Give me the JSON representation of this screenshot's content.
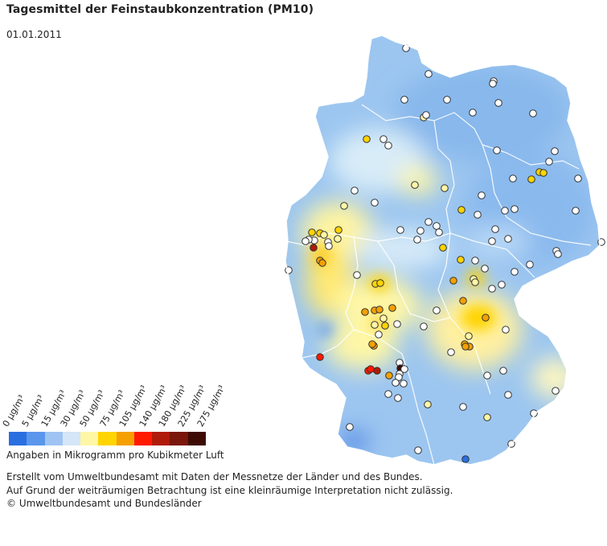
{
  "header": {
    "title": "Tagesmittel der Feinstaubkonzentration (PM10)",
    "date": "01.01.2011"
  },
  "legend": {
    "labels": [
      "0 µg/m³",
      "5 µg/m³",
      "15 µg/m³",
      "30 µg/m³",
      "50 µg/m³",
      "75 µg/m³",
      "105 µg/m³",
      "140 µg/m³",
      "180 µg/m³",
      "225 µg/m³",
      "275 µg/m³"
    ],
    "colors": [
      "#2a6fe0",
      "#5a96ec",
      "#9fc4f3",
      "#d4e6f7",
      "#fff7a6",
      "#ffd400",
      "#f5a000",
      "#ff1a00",
      "#b01a0a",
      "#7a160a",
      "#3e0b04"
    ],
    "caption": "Angaben in Mikrogramm pro Kubikmeter Luft"
  },
  "source": {
    "line1": "Erstellt vom Umweltbundesamt mit Daten der Messnetze der Länder und des Bundes.",
    "line2": "Auf Grund der weiträumigen Betrachtung ist eine kleinräumige Interpretation nicht zulässig.",
    "line3": "© Umweltbundesamt und Bundesländer"
  },
  "map": {
    "base_color": "#9cc6f0",
    "border_color": "#ffffff"
  }
}
